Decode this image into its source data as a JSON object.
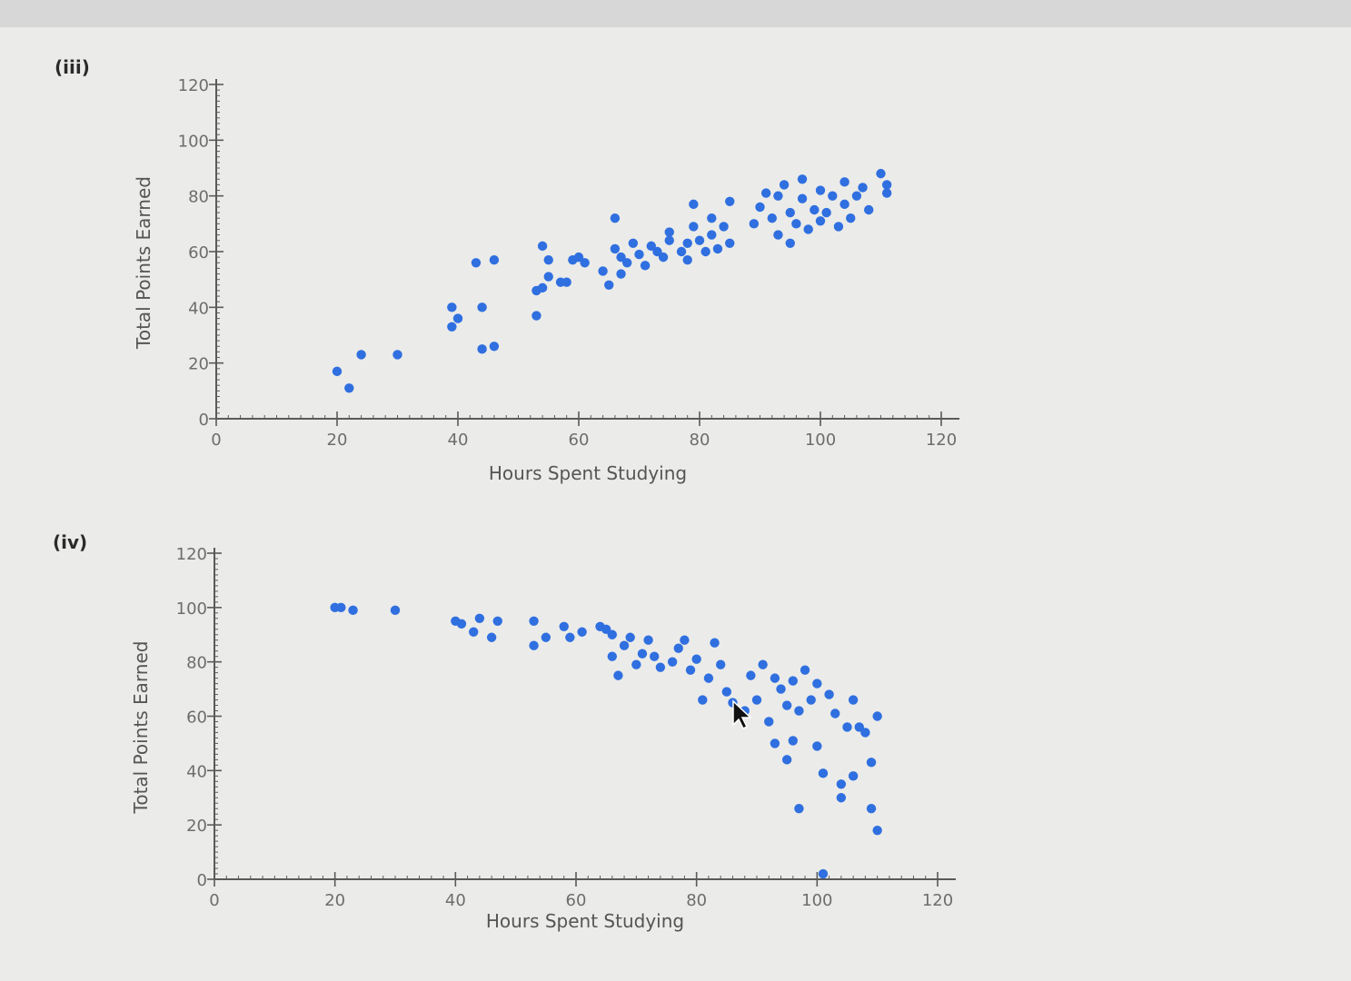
{
  "colors": {
    "point": "#2f6fe0",
    "axis": "#5a5a5a",
    "text": "#6a6a6a"
  },
  "chart_data": [
    {
      "panel_label": "(iii)",
      "type": "scatter",
      "xlabel": "Hours Spent Studying",
      "ylabel": "Total Points Earned",
      "xlim": [
        0,
        120
      ],
      "ylim": [
        0,
        120
      ],
      "xticks": [
        0,
        20,
        40,
        60,
        80,
        100,
        120
      ],
      "yticks": [
        0,
        20,
        40,
        60,
        80,
        100,
        120
      ],
      "grid": false,
      "series": [
        {
          "points": [
            [
              20,
              17
            ],
            [
              22,
              11
            ],
            [
              24,
              23
            ],
            [
              30,
              23
            ],
            [
              39,
              40
            ],
            [
              40,
              36
            ],
            [
              39,
              33
            ],
            [
              43,
              56
            ],
            [
              44,
              40
            ],
            [
              46,
              57
            ],
            [
              44,
              25
            ],
            [
              46,
              26
            ],
            [
              53,
              37
            ],
            [
              53,
              46
            ],
            [
              54,
              47
            ],
            [
              54,
              62
            ],
            [
              55,
              51
            ],
            [
              55,
              57
            ],
            [
              57,
              49
            ],
            [
              58,
              49
            ],
            [
              59,
              57
            ],
            [
              60,
              58
            ],
            [
              61,
              56
            ],
            [
              64,
              53
            ],
            [
              65,
              48
            ],
            [
              66,
              61
            ],
            [
              66,
              72
            ],
            [
              67,
              52
            ],
            [
              67,
              58
            ],
            [
              68,
              56
            ],
            [
              69,
              63
            ],
            [
              70,
              59
            ],
            [
              71,
              55
            ],
            [
              72,
              62
            ],
            [
              73,
              60
            ],
            [
              74,
              58
            ],
            [
              75,
              64
            ],
            [
              75,
              67
            ],
            [
              77,
              60
            ],
            [
              78,
              57
            ],
            [
              78,
              63
            ],
            [
              79,
              69
            ],
            [
              79,
              77
            ],
            [
              80,
              64
            ],
            [
              81,
              60
            ],
            [
              82,
              66
            ],
            [
              82,
              72
            ],
            [
              83,
              61
            ],
            [
              84,
              69
            ],
            [
              85,
              63
            ],
            [
              85,
              78
            ],
            [
              89,
              70
            ],
            [
              90,
              76
            ],
            [
              91,
              81
            ],
            [
              92,
              72
            ],
            [
              93,
              66
            ],
            [
              93,
              80
            ],
            [
              94,
              84
            ],
            [
              95,
              63
            ],
            [
              95,
              74
            ],
            [
              96,
              70
            ],
            [
              97,
              79
            ],
            [
              97,
              86
            ],
            [
              98,
              68
            ],
            [
              99,
              75
            ],
            [
              100,
              71
            ],
            [
              100,
              82
            ],
            [
              101,
              74
            ],
            [
              102,
              80
            ],
            [
              103,
              69
            ],
            [
              104,
              85
            ],
            [
              104,
              77
            ],
            [
              105,
              72
            ],
            [
              106,
              80
            ],
            [
              107,
              83
            ],
            [
              108,
              75
            ],
            [
              110,
              88
            ],
            [
              111,
              84
            ],
            [
              111,
              81
            ]
          ]
        }
      ]
    },
    {
      "panel_label": "(iv)",
      "type": "scatter",
      "xlabel": "Hours Spent Studying",
      "ylabel": "Total Points Earned",
      "xlim": [
        0,
        120
      ],
      "ylim": [
        0,
        120
      ],
      "xticks": [
        0,
        20,
        40,
        60,
        80,
        100,
        120
      ],
      "yticks": [
        0,
        20,
        40,
        60,
        80,
        100,
        120
      ],
      "grid": false,
      "series": [
        {
          "points": [
            [
              20,
              100
            ],
            [
              21,
              100
            ],
            [
              23,
              99
            ],
            [
              30,
              99
            ],
            [
              40,
              95
            ],
            [
              41,
              94
            ],
            [
              43,
              91
            ],
            [
              44,
              96
            ],
            [
              46,
              89
            ],
            [
              47,
              95
            ],
            [
              53,
              95
            ],
            [
              53,
              86
            ],
            [
              55,
              89
            ],
            [
              58,
              93
            ],
            [
              59,
              89
            ],
            [
              61,
              91
            ],
            [
              64,
              93
            ],
            [
              65,
              92
            ],
            [
              66,
              90
            ],
            [
              66,
              82
            ],
            [
              67,
              75
            ],
            [
              68,
              86
            ],
            [
              69,
              89
            ],
            [
              70,
              79
            ],
            [
              71,
              83
            ],
            [
              72,
              88
            ],
            [
              73,
              82
            ],
            [
              74,
              78
            ],
            [
              76,
              80
            ],
            [
              77,
              85
            ],
            [
              78,
              88
            ],
            [
              79,
              77
            ],
            [
              80,
              81
            ],
            [
              81,
              66
            ],
            [
              82,
              74
            ],
            [
              83,
              87
            ],
            [
              84,
              79
            ],
            [
              85,
              69
            ],
            [
              86,
              65
            ],
            [
              88,
              62
            ],
            [
              89,
              75
            ],
            [
              90,
              66
            ],
            [
              91,
              79
            ],
            [
              92,
              58
            ],
            [
              93,
              74
            ],
            [
              93,
              50
            ],
            [
              94,
              70
            ],
            [
              95,
              64
            ],
            [
              95,
              44
            ],
            [
              96,
              73
            ],
            [
              96,
              51
            ],
            [
              97,
              62
            ],
            [
              97,
              26
            ],
            [
              98,
              77
            ],
            [
              99,
              66
            ],
            [
              100,
              72
            ],
            [
              100,
              49
            ],
            [
              101,
              39
            ],
            [
              101,
              2
            ],
            [
              102,
              68
            ],
            [
              103,
              61
            ],
            [
              104,
              30
            ],
            [
              104,
              35
            ],
            [
              105,
              56
            ],
            [
              106,
              66
            ],
            [
              106,
              38
            ],
            [
              107,
              56
            ],
            [
              108,
              54
            ],
            [
              109,
              43
            ],
            [
              109,
              26
            ],
            [
              110,
              60
            ],
            [
              110,
              18
            ]
          ]
        }
      ]
    }
  ]
}
